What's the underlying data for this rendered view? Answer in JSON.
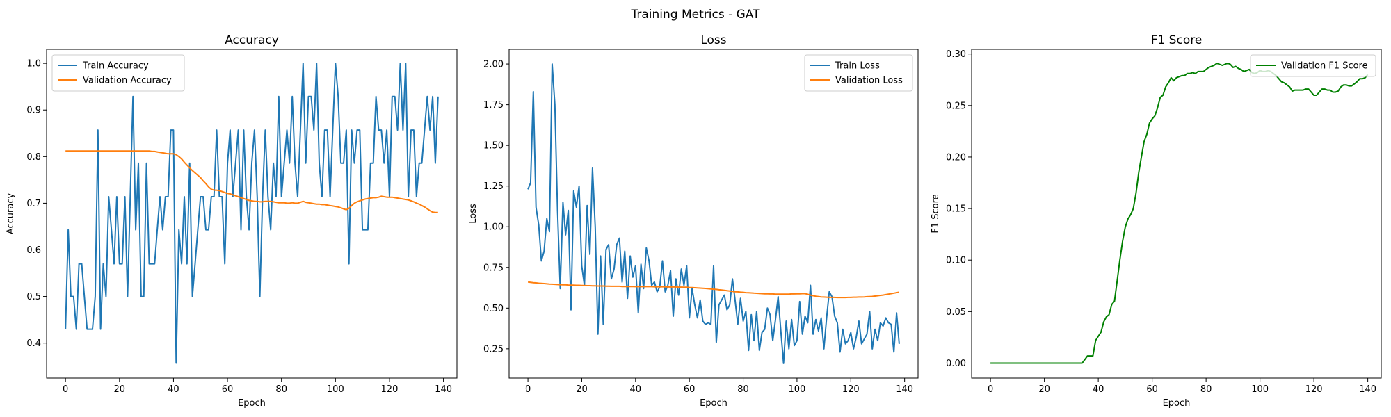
{
  "figure": {
    "suptitle": "Training Metrics - GAT"
  },
  "colors": {
    "train": "#1f77b4",
    "validation": "#ff7f0e",
    "f1": "#008000"
  },
  "chart_data": [
    {
      "type": "line",
      "title": "Accuracy",
      "xlabel": "Epoch",
      "ylabel": "Accuracy",
      "xlim": [
        -7,
        145
      ],
      "ylim": [
        0.325,
        1.03
      ],
      "xticks": [
        0,
        20,
        40,
        60,
        80,
        100,
        120,
        140
      ],
      "yticks": [
        0.4,
        0.5,
        0.6,
        0.7,
        0.8,
        0.9,
        1.0
      ],
      "ytick_labels": [
        "0.4",
        "0.5",
        "0.6",
        "0.7",
        "0.8",
        "0.9",
        "1.0"
      ],
      "legend_loc": "upper-left",
      "series": [
        {
          "name": "Train Accuracy",
          "color": "#1f77b4",
          "values": [
            0.43,
            0.643,
            0.5,
            0.5,
            0.43,
            0.57,
            0.57,
            0.5,
            0.43,
            0.43,
            0.43,
            0.5,
            0.857,
            0.43,
            0.57,
            0.5,
            0.714,
            0.643,
            0.57,
            0.714,
            0.57,
            0.57,
            0.714,
            0.5,
            0.714,
            0.929,
            0.643,
            0.786,
            0.5,
            0.5,
            0.786,
            0.57,
            0.57,
            0.57,
            0.643,
            0.714,
            0.643,
            0.714,
            0.714,
            0.857,
            0.857,
            0.357,
            0.643,
            0.57,
            0.714,
            0.57,
            0.786,
            0.5,
            0.57,
            0.643,
            0.714,
            0.714,
            0.643,
            0.643,
            0.714,
            0.714,
            0.857,
            0.714,
            0.714,
            0.57,
            0.786,
            0.857,
            0.714,
            0.786,
            0.857,
            0.643,
            0.857,
            0.714,
            0.643,
            0.786,
            0.857,
            0.714,
            0.5,
            0.714,
            0.857,
            0.714,
            0.643,
            0.786,
            0.714,
            0.929,
            0.714,
            0.786,
            0.857,
            0.786,
            0.929,
            0.786,
            0.714,
            0.857,
            1.0,
            0.786,
            0.929,
            0.929,
            0.857,
            1.0,
            0.786,
            0.714,
            0.857,
            0.857,
            0.714,
            0.857,
            1.0,
            0.929,
            0.786,
            0.786,
            0.857,
            0.57,
            0.857,
            0.786,
            0.857,
            0.857,
            0.643,
            0.643,
            0.643,
            0.786,
            0.786,
            0.929,
            0.857,
            0.857,
            0.786,
            0.857,
            0.714,
            0.929,
            0.929,
            0.857,
            1.0,
            0.857,
            1.0,
            0.714,
            0.857,
            0.857,
            0.714,
            0.786,
            0.786,
            0.857,
            0.929,
            0.857,
            0.929,
            0.786,
            0.929
          ]
        },
        {
          "name": "Validation Accuracy",
          "color": "#ff7f0e",
          "values": [
            0.812,
            0.812,
            0.812,
            0.812,
            0.812,
            0.812,
            0.812,
            0.812,
            0.812,
            0.812,
            0.812,
            0.812,
            0.812,
            0.812,
            0.812,
            0.812,
            0.812,
            0.812,
            0.812,
            0.812,
            0.812,
            0.812,
            0.812,
            0.812,
            0.812,
            0.812,
            0.812,
            0.812,
            0.812,
            0.812,
            0.812,
            0.812,
            0.811,
            0.811,
            0.81,
            0.809,
            0.808,
            0.807,
            0.806,
            0.806,
            0.806,
            0.804,
            0.8,
            0.795,
            0.788,
            0.782,
            0.776,
            0.77,
            0.765,
            0.76,
            0.755,
            0.748,
            0.742,
            0.735,
            0.73,
            0.728,
            0.728,
            0.727,
            0.725,
            0.723,
            0.721,
            0.72,
            0.718,
            0.716,
            0.714,
            0.712,
            0.71,
            0.708,
            0.706,
            0.705,
            0.704,
            0.704,
            0.703,
            0.703,
            0.704,
            0.704,
            0.704,
            0.703,
            0.702,
            0.701,
            0.701,
            0.701,
            0.7,
            0.7,
            0.701,
            0.7,
            0.7,
            0.702,
            0.704,
            0.702,
            0.701,
            0.7,
            0.699,
            0.698,
            0.698,
            0.697,
            0.697,
            0.696,
            0.695,
            0.694,
            0.693,
            0.692,
            0.69,
            0.688,
            0.686,
            0.689,
            0.695,
            0.7,
            0.703,
            0.705,
            0.707,
            0.709,
            0.71,
            0.711,
            0.712,
            0.712,
            0.713,
            0.715,
            0.714,
            0.713,
            0.713,
            0.713,
            0.712,
            0.711,
            0.71,
            0.709,
            0.708,
            0.707,
            0.705,
            0.703,
            0.7,
            0.698,
            0.695,
            0.692,
            0.688,
            0.684,
            0.681,
            0.68,
            0.68
          ]
        }
      ]
    },
    {
      "type": "line",
      "title": "Loss",
      "xlabel": "Epoch",
      "ylabel": "Loss",
      "xlim": [
        -7,
        145
      ],
      "ylim": [
        0.07,
        2.09
      ],
      "xticks": [
        0,
        20,
        40,
        60,
        80,
        100,
        120,
        140
      ],
      "yticks": [
        0.25,
        0.5,
        0.75,
        1.0,
        1.25,
        1.5,
        1.75,
        2.0
      ],
      "ytick_labels": [
        "0.25",
        "0.50",
        "0.75",
        "1.00",
        "1.25",
        "1.50",
        "1.75",
        "2.00"
      ],
      "legend_loc": "upper-right",
      "series": [
        {
          "name": "Train Loss",
          "color": "#1f77b4",
          "values": [
            1.23,
            1.27,
            1.83,
            1.12,
            1.01,
            0.79,
            0.85,
            1.05,
            0.97,
            2.0,
            1.75,
            1.1,
            0.62,
            1.15,
            0.95,
            1.1,
            0.49,
            1.22,
            1.12,
            1.25,
            0.76,
            0.64,
            1.13,
            0.83,
            1.36,
            1.0,
            0.34,
            0.82,
            0.4,
            0.86,
            0.89,
            0.68,
            0.74,
            0.89,
            0.93,
            0.66,
            0.85,
            0.56,
            0.82,
            0.69,
            0.76,
            0.47,
            0.77,
            0.62,
            0.87,
            0.79,
            0.64,
            0.66,
            0.6,
            0.63,
            0.79,
            0.6,
            0.64,
            0.73,
            0.45,
            0.68,
            0.58,
            0.74,
            0.64,
            0.76,
            0.44,
            0.62,
            0.52,
            0.44,
            0.55,
            0.42,
            0.4,
            0.41,
            0.4,
            0.76,
            0.29,
            0.52,
            0.55,
            0.58,
            0.49,
            0.52,
            0.68,
            0.55,
            0.4,
            0.56,
            0.42,
            0.48,
            0.24,
            0.46,
            0.3,
            0.48,
            0.24,
            0.35,
            0.37,
            0.5,
            0.46,
            0.3,
            0.43,
            0.57,
            0.36,
            0.16,
            0.42,
            0.25,
            0.43,
            0.27,
            0.3,
            0.54,
            0.34,
            0.45,
            0.41,
            0.64,
            0.34,
            0.43,
            0.36,
            0.44,
            0.25,
            0.44,
            0.6,
            0.57,
            0.45,
            0.41,
            0.23,
            0.37,
            0.28,
            0.3,
            0.35,
            0.25,
            0.32,
            0.42,
            0.28,
            0.31,
            0.34,
            0.48,
            0.25,
            0.37,
            0.3,
            0.41,
            0.39,
            0.44,
            0.41,
            0.4,
            0.23,
            0.47,
            0.28
          ]
        },
        {
          "name": "Validation Loss",
          "color": "#ff7f0e",
          "values": [
            0.66,
            0.658,
            0.656,
            0.655,
            0.653,
            0.652,
            0.651,
            0.649,
            0.648,
            0.647,
            0.646,
            0.645,
            0.644,
            0.643,
            0.643,
            0.642,
            0.641,
            0.641,
            0.64,
            0.64,
            0.639,
            0.639,
            0.638,
            0.638,
            0.637,
            0.637,
            0.636,
            0.636,
            0.636,
            0.635,
            0.635,
            0.634,
            0.634,
            0.634,
            0.634,
            0.633,
            0.633,
            0.633,
            0.633,
            0.633,
            0.632,
            0.632,
            0.632,
            0.632,
            0.632,
            0.632,
            0.632,
            0.631,
            0.631,
            0.631,
            0.631,
            0.631,
            0.63,
            0.63,
            0.63,
            0.63,
            0.629,
            0.629,
            0.628,
            0.628,
            0.627,
            0.626,
            0.625,
            0.624,
            0.623,
            0.622,
            0.621,
            0.619,
            0.618,
            0.616,
            0.615,
            0.613,
            0.611,
            0.609,
            0.607,
            0.605,
            0.603,
            0.601,
            0.6,
            0.598,
            0.597,
            0.595,
            0.594,
            0.593,
            0.592,
            0.591,
            0.59,
            0.589,
            0.588,
            0.588,
            0.587,
            0.587,
            0.586,
            0.586,
            0.586,
            0.586,
            0.586,
            0.586,
            0.587,
            0.587,
            0.588,
            0.588,
            0.589,
            0.589,
            0.585,
            0.58,
            0.576,
            0.573,
            0.571,
            0.569,
            0.568,
            0.567,
            0.566,
            0.566,
            0.566,
            0.565,
            0.565,
            0.565,
            0.565,
            0.566,
            0.566,
            0.567,
            0.567,
            0.568,
            0.568,
            0.569,
            0.57,
            0.571,
            0.572,
            0.574,
            0.576,
            0.578,
            0.58,
            0.583,
            0.586,
            0.589,
            0.592,
            0.595,
            0.598
          ]
        }
      ]
    },
    {
      "type": "line",
      "title": "F1 Score",
      "xlabel": "Epoch",
      "ylabel": "F1 Score",
      "xlim": [
        -7,
        145
      ],
      "ylim": [
        -0.0145,
        0.3045
      ],
      "xticks": [
        0,
        20,
        40,
        60,
        80,
        100,
        120,
        140
      ],
      "yticks": [
        0.0,
        0.05,
        0.1,
        0.15,
        0.2,
        0.25,
        0.3
      ],
      "ytick_labels": [
        "0.00",
        "0.05",
        "0.10",
        "0.15",
        "0.20",
        "0.25",
        "0.30"
      ],
      "legend_loc": "upper-right",
      "series": [
        {
          "name": "Validation F1 Score",
          "color": "#008000",
          "values": [
            0,
            0,
            0,
            0,
            0,
            0,
            0,
            0,
            0,
            0,
            0,
            0,
            0,
            0,
            0,
            0,
            0,
            0,
            0,
            0,
            0,
            0,
            0,
            0,
            0,
            0,
            0,
            0,
            0,
            0,
            0,
            0,
            0,
            0,
            0,
            0.0035,
            0.007,
            0.007,
            0.007,
            0.022,
            0.026,
            0.03,
            0.04,
            0.045,
            0.047,
            0.057,
            0.06,
            0.08,
            0.1,
            0.118,
            0.132,
            0.14,
            0.144,
            0.15,
            0.165,
            0.185,
            0.2,
            0.215,
            0.222,
            0.233,
            0.237,
            0.24,
            0.248,
            0.258,
            0.26,
            0.268,
            0.272,
            0.277,
            0.274,
            0.277,
            0.278,
            0.279,
            0.279,
            0.281,
            0.281,
            0.282,
            0.281,
            0.283,
            0.283,
            0.283,
            0.285,
            0.287,
            0.288,
            0.289,
            0.291,
            0.29,
            0.289,
            0.29,
            0.291,
            0.29,
            0.287,
            0.288,
            0.286,
            0.285,
            0.283,
            0.284,
            0.285,
            0.282,
            0.281,
            0.282,
            0.284,
            0.283,
            0.283,
            0.284,
            0.283,
            0.281,
            0.279,
            0.276,
            0.273,
            0.272,
            0.27,
            0.268,
            0.264,
            0.265,
            0.265,
            0.265,
            0.265,
            0.266,
            0.266,
            0.263,
            0.26,
            0.26,
            0.263,
            0.266,
            0.266,
            0.265,
            0.265,
            0.263,
            0.263,
            0.264,
            0.268,
            0.27,
            0.27,
            0.269,
            0.269,
            0.271,
            0.273,
            0.276,
            0.276,
            0.277,
            0.28
          ]
        }
      ]
    }
  ]
}
